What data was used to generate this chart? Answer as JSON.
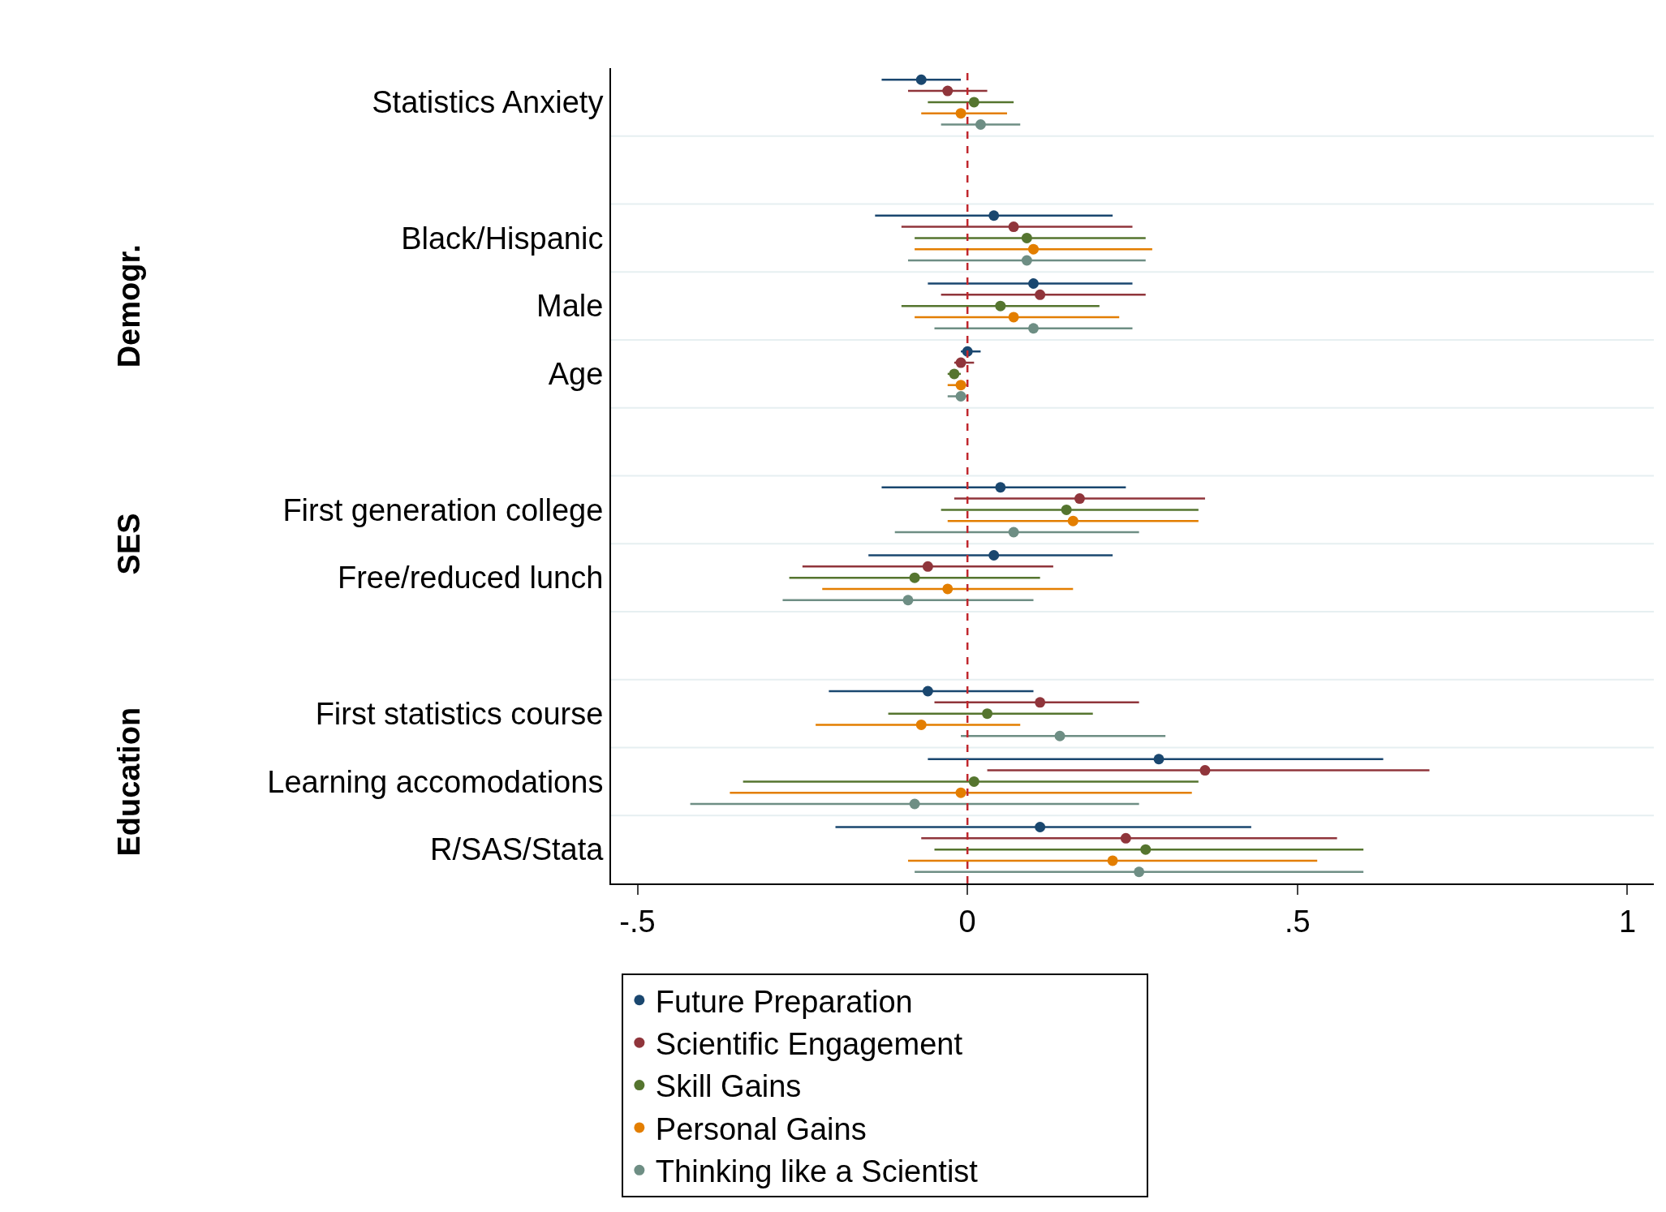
{
  "chart_data": {
    "type": "scatter",
    "orientation": "horizontal",
    "categories": [
      "Statistics Anxiety",
      null,
      "Black/Hispanic",
      "Male",
      "Age",
      null,
      "First generation college",
      "Free/reduced lunch",
      null,
      "First statistics course",
      "Learning accomodations",
      "R/SAS/Stata"
    ],
    "series": [
      {
        "name": "Future Preparation",
        "color": "#1a476f",
        "values": [
          -0.07,
          null,
          0.04,
          0.1,
          0.0,
          null,
          0.05,
          0.04,
          null,
          -0.06,
          0.29,
          0.11
        ],
        "errors": [
          [
            -0.13,
            -0.01
          ],
          null,
          [
            -0.14,
            0.22
          ],
          [
            -0.06,
            0.25
          ],
          [
            -0.01,
            0.02
          ],
          null,
          [
            -0.13,
            0.24
          ],
          [
            -0.15,
            0.22
          ],
          null,
          [
            -0.21,
            0.1
          ],
          [
            -0.06,
            0.63
          ],
          [
            -0.2,
            0.43
          ]
        ]
      },
      {
        "name": "Scientific Engagement",
        "color": "#90353b",
        "values": [
          -0.03,
          null,
          0.07,
          0.11,
          -0.01,
          null,
          0.17,
          -0.06,
          null,
          0.11,
          0.36,
          0.24
        ],
        "errors": [
          [
            -0.09,
            0.03
          ],
          null,
          [
            -0.1,
            0.25
          ],
          [
            -0.04,
            0.27
          ],
          [
            -0.02,
            0.01
          ],
          null,
          [
            -0.02,
            0.36
          ],
          [
            -0.25,
            0.13
          ],
          null,
          [
            -0.05,
            0.26
          ],
          [
            0.03,
            0.7
          ],
          [
            -0.07,
            0.56
          ]
        ]
      },
      {
        "name": "Skill Gains",
        "color": "#55752f",
        "values": [
          0.01,
          null,
          0.09,
          0.05,
          -0.02,
          null,
          0.15,
          -0.08,
          null,
          0.03,
          0.01,
          0.27
        ],
        "errors": [
          [
            -0.06,
            0.07
          ],
          null,
          [
            -0.08,
            0.27
          ],
          [
            -0.1,
            0.2
          ],
          [
            -0.03,
            -0.01
          ],
          null,
          [
            -0.04,
            0.35
          ],
          [
            -0.27,
            0.11
          ],
          null,
          [
            -0.12,
            0.19
          ],
          [
            -0.34,
            0.35
          ],
          [
            -0.05,
            0.6
          ]
        ]
      },
      {
        "name": "Personal Gains",
        "color": "#e37e00",
        "values": [
          -0.01,
          null,
          0.1,
          0.07,
          -0.01,
          null,
          0.16,
          -0.03,
          null,
          -0.07,
          -0.01,
          0.22
        ],
        "errors": [
          [
            -0.07,
            0.06
          ],
          null,
          [
            -0.08,
            0.28
          ],
          [
            -0.08,
            0.23
          ],
          [
            -0.03,
            0.0
          ],
          null,
          [
            -0.03,
            0.35
          ],
          [
            -0.22,
            0.16
          ],
          null,
          [
            -0.23,
            0.08
          ],
          [
            -0.36,
            0.34
          ],
          [
            -0.09,
            0.53
          ]
        ]
      },
      {
        "name": "Thinking like a Scientist",
        "color": "#6e8e84",
        "values": [
          0.02,
          null,
          0.09,
          0.1,
          -0.01,
          null,
          0.07,
          -0.09,
          null,
          0.14,
          -0.08,
          0.26
        ],
        "errors": [
          [
            -0.04,
            0.08
          ],
          null,
          [
            -0.09,
            0.27
          ],
          [
            -0.05,
            0.25
          ],
          [
            -0.03,
            0.0
          ],
          null,
          [
            -0.11,
            0.26
          ],
          [
            -0.28,
            0.1
          ],
          null,
          [
            -0.01,
            0.3
          ],
          [
            -0.42,
            0.26
          ],
          [
            -0.08,
            0.6
          ]
        ]
      }
    ],
    "xlim": [
      -0.54,
      1.04
    ],
    "xticks": [
      {
        "value": -0.5,
        "label": "-.5"
      },
      0,
      {
        "value": 0.5,
        "label": ".5"
      },
      1
    ],
    "ref_lines": [
      {
        "axis": "x",
        "value": 0,
        "color": "#c0272d",
        "line_style": "dashed"
      }
    ],
    "annotations": [
      "Demogr.",
      "SES",
      "Education"
    ],
    "grid": "y",
    "legend": "bottom",
    "marker": "circle"
  }
}
